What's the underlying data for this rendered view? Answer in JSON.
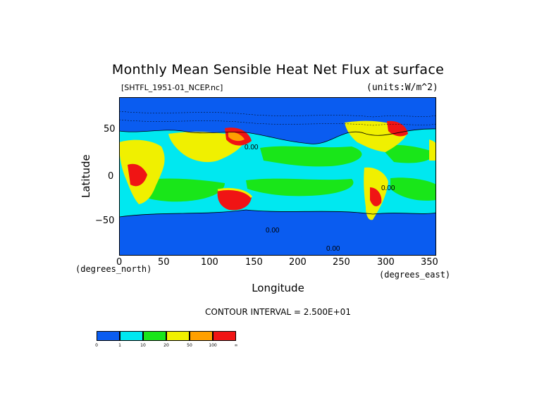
{
  "title": "Monthly Mean Sensible Heat Net Flux at surface",
  "source_file": "[SHTFL_1951-01_NCEP.nc]",
  "units_label": "(units:W/m^2)",
  "chart_data": {
    "type": "heatmap",
    "title": "Monthly Mean Sensible Heat Net Flux at surface",
    "xlabel": "Longitude",
    "ylabel": "Latitude",
    "x_units": "(degrees_east)",
    "y_units": "(degrees_north)",
    "xlim": [
      0,
      360
    ],
    "ylim": [
      -90,
      90
    ],
    "xticks": [
      "0",
      "50",
      "100",
      "150",
      "200",
      "250",
      "300",
      "350"
    ],
    "yticks": [
      "50",
      "0",
      "−50"
    ],
    "contour_interval": "CONTOUR INTERVAL = 2.500E+01",
    "contour_labels": [
      "0.00",
      "0.00",
      "0.00",
      "0.00"
    ],
    "colorbar": {
      "boundaries": [
        "0",
        "1",
        "10",
        "20",
        "50",
        "100",
        "∞"
      ],
      "colors": [
        "#0a5cf0",
        "#00e8f0",
        "#19e619",
        "#f0f000",
        "#ffa000",
        "#f01414"
      ]
    }
  }
}
